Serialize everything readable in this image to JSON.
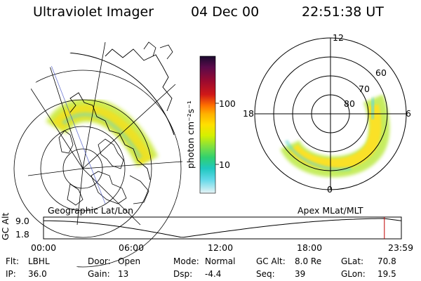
{
  "header": {
    "title": "Ultraviolet Imager",
    "date": "04 Dec 00",
    "time": "22:51:38 UT"
  },
  "geo_panel": {
    "caption": "Geographic Lat/Lon"
  },
  "polar_panel": {
    "caption": "Apex MLat/MLT",
    "mlt_labels": {
      "top": "12",
      "left": "18",
      "right": "6",
      "bottom": "0"
    },
    "lat_labels": [
      "60",
      "70",
      "80"
    ]
  },
  "colorbar": {
    "unit_label": "photon cm⁻²s⁻¹",
    "ticks": [
      "100",
      "10"
    ],
    "colors": [
      "#1a0a2e",
      "#5a0a4a",
      "#9a0a30",
      "#d01818",
      "#ff7000",
      "#ffb000",
      "#ffe000",
      "#d4f000",
      "#80e040",
      "#30d070",
      "#20c8c0",
      "#60d8e8",
      "#b0e8f0",
      "#e8f4f6"
    ]
  },
  "timeline": {
    "axis_label": "GC Alt",
    "ymax": "9.0",
    "ymin": "1.8",
    "times": [
      "00:00",
      "06:00",
      "12:00",
      "18:00",
      "23:59"
    ],
    "current_marker_hour": 22.86
  },
  "info": {
    "flt_label": "Flt:",
    "flt_value": "LBHL",
    "door_label": "Door:",
    "door_value": "Open",
    "mode_label": "Mode:",
    "mode_value": "Normal",
    "gcalt_label": "GC Alt:",
    "gcalt_value": "8.0 Re",
    "glat_label": "GLat:",
    "glat_value": "70.8",
    "ip_label": "IP:",
    "ip_value": "36.0",
    "gain_label": "Gain:",
    "gain_value": "13",
    "dsp_label": "Dsp:",
    "dsp_value": "-4.4",
    "seq_label": "Seq:",
    "seq_value": "39",
    "glon_label": "GLon:",
    "glon_value": "19.5"
  }
}
